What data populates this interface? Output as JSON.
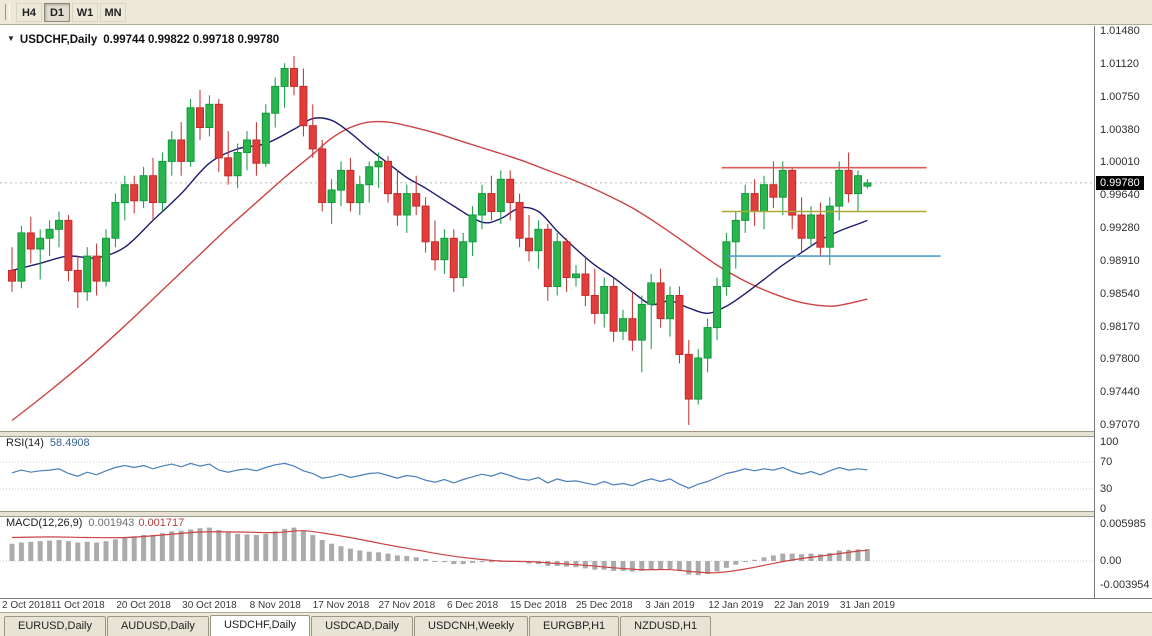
{
  "toolbar": {
    "timeframes": [
      {
        "label": "H4",
        "active": false
      },
      {
        "label": "D1",
        "active": true
      },
      {
        "label": "W1",
        "active": false
      },
      {
        "label": "MN",
        "active": false
      }
    ]
  },
  "chart": {
    "title": {
      "symbol_period": "USDCHF,Daily",
      "ohlc": "0.99744 0.99822 0.99718 0.99780"
    },
    "price_axis": {
      "labels": [
        "1.01480",
        "1.01120",
        "1.00750",
        "1.00380",
        "1.00010",
        "0.99640",
        "0.99280",
        "0.98910",
        "0.98540",
        "0.98170",
        "0.97800",
        "0.97440",
        "0.97070"
      ],
      "current": "0.99780"
    }
  },
  "chart_data": {
    "type": "candlestick",
    "symbol": "USDCHF",
    "period": "Daily",
    "ohlc_current": {
      "open": 0.99744,
      "high": 0.99822,
      "low": 0.99718,
      "close": 0.9978
    },
    "ylim": [
      0.9707,
      1.0148
    ],
    "current_price": 0.9978,
    "colors": {
      "up": "#2ab44e",
      "up_border": "#0f9a3c",
      "down": "#e23d3d",
      "down_border": "#c32b2b",
      "ma_fast": "#1c1c6e",
      "ma_slow": "#cc4343",
      "rsi": "#4a7ebb",
      "macd_hist": "#ababab",
      "macd_signal": "#cc4343",
      "bid_line": "#bbbbbb"
    },
    "candles": [
      [
        0.988,
        0.9906,
        0.9856,
        0.9868
      ],
      [
        0.9868,
        0.993,
        0.986,
        0.9922
      ],
      [
        0.9922,
        0.994,
        0.9888,
        0.9904
      ],
      [
        0.9904,
        0.9926,
        0.987,
        0.9916
      ],
      [
        0.9916,
        0.9936,
        0.9896,
        0.9926
      ],
      [
        0.9926,
        0.9946,
        0.9906,
        0.9936
      ],
      [
        0.9936,
        0.9942,
        0.9868,
        0.988
      ],
      [
        0.988,
        0.9896,
        0.9838,
        0.9856
      ],
      [
        0.9856,
        0.9906,
        0.9846,
        0.9896
      ],
      [
        0.9896,
        0.991,
        0.9852,
        0.9868
      ],
      [
        0.9868,
        0.9926,
        0.9862,
        0.9916
      ],
      [
        0.9916,
        0.9966,
        0.9906,
        0.9956
      ],
      [
        0.9956,
        0.9986,
        0.9936,
        0.9976
      ],
      [
        0.9976,
        0.9986,
        0.9944,
        0.9958
      ],
      [
        0.9958,
        0.9996,
        0.995,
        0.9986
      ],
      [
        0.9986,
        1.0006,
        0.9936,
        0.9956
      ],
      [
        0.9956,
        1.0012,
        0.9946,
        1.0002
      ],
      [
        1.0002,
        1.0036,
        0.9986,
        1.0026
      ],
      [
        1.0026,
        1.0046,
        0.9986,
        1.0002
      ],
      [
        1.0002,
        1.0072,
        0.9996,
        1.0062
      ],
      [
        1.0062,
        1.0082,
        1.0026,
        1.004
      ],
      [
        1.004,
        1.0076,
        1.003,
        1.0066
      ],
      [
        1.0066,
        1.0072,
        0.999,
        1.0006
      ],
      [
        1.0006,
        1.0036,
        0.9976,
        0.9986
      ],
      [
        0.9986,
        1.0022,
        0.9972,
        1.0012
      ],
      [
        1.0012,
        1.0036,
        0.9992,
        1.0026
      ],
      [
        1.0026,
        1.0046,
        0.9986,
        1.0
      ],
      [
        1.0,
        1.0066,
        0.9996,
        1.0056
      ],
      [
        1.0056,
        1.0096,
        1.004,
        1.0086
      ],
      [
        1.0086,
        1.0112,
        1.0062,
        1.0106
      ],
      [
        1.0106,
        1.012,
        1.0076,
        1.0086
      ],
      [
        1.0086,
        1.0106,
        1.003,
        1.0042
      ],
      [
        1.0042,
        1.0066,
        1.0006,
        1.0016
      ],
      [
        1.0016,
        1.0026,
        0.9946,
        0.9956
      ],
      [
        0.9956,
        0.9982,
        0.9932,
        0.997
      ],
      [
        0.997,
        1.0002,
        0.9952,
        0.9992
      ],
      [
        0.9992,
        1.0006,
        0.9946,
        0.9956
      ],
      [
        0.9956,
        0.9986,
        0.9942,
        0.9976
      ],
      [
        0.9976,
        1.0002,
        0.9956,
        0.9996
      ],
      [
        0.9996,
        1.0012,
        0.9972,
        1.0002
      ],
      [
        1.0002,
        1.0008,
        0.9956,
        0.9966
      ],
      [
        0.9966,
        0.9992,
        0.993,
        0.9942
      ],
      [
        0.9942,
        0.9976,
        0.9922,
        0.9966
      ],
      [
        0.9966,
        0.9986,
        0.9942,
        0.9952
      ],
      [
        0.9952,
        0.9962,
        0.99,
        0.9912
      ],
      [
        0.9912,
        0.9936,
        0.988,
        0.9892
      ],
      [
        0.9892,
        0.9926,
        0.9876,
        0.9916
      ],
      [
        0.9916,
        0.9926,
        0.9856,
        0.9872
      ],
      [
        0.9872,
        0.9922,
        0.9862,
        0.9912
      ],
      [
        0.9912,
        0.9952,
        0.9896,
        0.9942
      ],
      [
        0.9942,
        0.9976,
        0.9926,
        0.9966
      ],
      [
        0.9966,
        0.9986,
        0.9936,
        0.9946
      ],
      [
        0.9946,
        0.9992,
        0.9932,
        0.9982
      ],
      [
        0.9982,
        0.9992,
        0.9936,
        0.9956
      ],
      [
        0.9956,
        0.9966,
        0.9906,
        0.9916
      ],
      [
        0.9916,
        0.9942,
        0.989,
        0.9902
      ],
      [
        0.9902,
        0.9936,
        0.9882,
        0.9926
      ],
      [
        0.9926,
        0.9932,
        0.9846,
        0.9862
      ],
      [
        0.9862,
        0.9922,
        0.9852,
        0.9912
      ],
      [
        0.9912,
        0.9916,
        0.9856,
        0.9872
      ],
      [
        0.9872,
        0.9886,
        0.9862,
        0.9876
      ],
      [
        0.9876,
        0.9896,
        0.984,
        0.9852
      ],
      [
        0.9852,
        0.9882,
        0.982,
        0.9832
      ],
      [
        0.9832,
        0.9872,
        0.9816,
        0.9862
      ],
      [
        0.9862,
        0.9872,
        0.98,
        0.9812
      ],
      [
        0.9812,
        0.9836,
        0.9802,
        0.9826
      ],
      [
        0.9826,
        0.9856,
        0.979,
        0.9802
      ],
      [
        0.9802,
        0.9852,
        0.9766,
        0.9842
      ],
      [
        0.9842,
        0.9876,
        0.9792,
        0.9866
      ],
      [
        0.9866,
        0.9882,
        0.9816,
        0.9826
      ],
      [
        0.9826,
        0.9862,
        0.9806,
        0.9852
      ],
      [
        0.9852,
        0.9862,
        0.9776,
        0.9786
      ],
      [
        0.9786,
        0.9802,
        0.9707,
        0.9736
      ],
      [
        0.9736,
        0.9792,
        0.973,
        0.9782
      ],
      [
        0.9782,
        0.9826,
        0.9766,
        0.9816
      ],
      [
        0.9816,
        0.9872,
        0.9802,
        0.9862
      ],
      [
        0.9862,
        0.9922,
        0.9852,
        0.9912
      ],
      [
        0.9912,
        0.9946,
        0.9882,
        0.9936
      ],
      [
        0.9936,
        0.9976,
        0.9922,
        0.9966
      ],
      [
        0.9966,
        0.9982,
        0.993,
        0.9946
      ],
      [
        0.9946,
        0.9986,
        0.9926,
        0.9976
      ],
      [
        0.9976,
        1.0002,
        0.995,
        0.9962
      ],
      [
        0.9962,
        1.0002,
        0.9942,
        0.9992
      ],
      [
        0.9992,
        0.9996,
        0.9926,
        0.9942
      ],
      [
        0.9942,
        0.9962,
        0.99,
        0.9916
      ],
      [
        0.9916,
        0.9952,
        0.9906,
        0.9942
      ],
      [
        0.9942,
        0.9956,
        0.9896,
        0.9906
      ],
      [
        0.9906,
        0.9962,
        0.9886,
        0.9952
      ],
      [
        0.9952,
        1.0002,
        0.9936,
        0.9992
      ],
      [
        0.9992,
        1.0012,
        0.9956,
        0.9966
      ],
      [
        0.9966,
        0.9992,
        0.9946,
        0.9986
      ],
      [
        0.99744,
        0.99822,
        0.99718,
        0.9978
      ]
    ],
    "time_labels": [
      {
        "index": 0,
        "text": "2 Oct 2018"
      },
      {
        "index": 7,
        "text": "11 Oct 2018"
      },
      {
        "index": 14,
        "text": "20 Oct 2018"
      },
      {
        "index": 21,
        "text": "30 Oct 2018"
      },
      {
        "index": 28,
        "text": "8 Nov 2018"
      },
      {
        "index": 35,
        "text": "17 Nov 2018"
      },
      {
        "index": 42,
        "text": "27 Nov 2018"
      },
      {
        "index": 49,
        "text": "6 Dec 2018"
      },
      {
        "index": 56,
        "text": "15 Dec 2018"
      },
      {
        "index": 63,
        "text": "25 Dec 2018"
      },
      {
        "index": 70,
        "text": "3 Jan 2019"
      },
      {
        "index": 77,
        "text": "12 Jan 2019"
      },
      {
        "index": 84,
        "text": "22 Jan 2019"
      },
      {
        "index": 91,
        "text": "31 Jan 2019"
      }
    ],
    "ma_fast_points": [
      [
        0,
        0.988
      ],
      [
        3,
        0.9888
      ],
      [
        6,
        0.9896
      ],
      [
        9,
        0.9894
      ],
      [
        12,
        0.9906
      ],
      [
        15,
        0.9936
      ],
      [
        18,
        0.9966
      ],
      [
        21,
        1.0
      ],
      [
        24,
        1.0016
      ],
      [
        27,
        1.0022
      ],
      [
        30,
        1.0038
      ],
      [
        32,
        1.005
      ],
      [
        34,
        1.0048
      ],
      [
        36,
        1.0034
      ],
      [
        38,
        1.0016
      ],
      [
        40,
        1.0
      ],
      [
        42,
        0.9984
      ],
      [
        44,
        0.9972
      ],
      [
        47,
        0.9952
      ],
      [
        50,
        0.9934
      ],
      [
        52,
        0.9938
      ],
      [
        54,
        0.995
      ],
      [
        56,
        0.9946
      ],
      [
        58,
        0.9924
      ],
      [
        60,
        0.9904
      ],
      [
        62,
        0.9886
      ],
      [
        64,
        0.9872
      ],
      [
        66,
        0.9856
      ],
      [
        68,
        0.9842
      ],
      [
        70,
        0.9846
      ],
      [
        72,
        0.9838
      ],
      [
        74,
        0.9832
      ],
      [
        76,
        0.984
      ],
      [
        78,
        0.9854
      ],
      [
        80,
        0.987
      ],
      [
        82,
        0.9886
      ],
      [
        84,
        0.99
      ],
      [
        86,
        0.9914
      ],
      [
        88,
        0.9924
      ],
      [
        90,
        0.9932
      ],
      [
        91,
        0.9936
      ]
    ],
    "ma_slow_points": [
      [
        0,
        0.9712
      ],
      [
        4,
        0.9745
      ],
      [
        8,
        0.978
      ],
      [
        12,
        0.9818
      ],
      [
        16,
        0.9858
      ],
      [
        20,
        0.9898
      ],
      [
        23,
        0.9928
      ],
      [
        26,
        0.9956
      ],
      [
        29,
        0.9984
      ],
      [
        32,
        1.001
      ],
      [
        34,
        1.0028
      ],
      [
        36,
        1.004
      ],
      [
        38,
        1.0046
      ],
      [
        40,
        1.0046
      ],
      [
        42,
        1.0042
      ],
      [
        45,
        1.0034
      ],
      [
        48,
        1.0024
      ],
      [
        51,
        1.0014
      ],
      [
        54,
        1.0004
      ],
      [
        57,
        0.9992
      ],
      [
        60,
        0.998
      ],
      [
        63,
        0.9966
      ],
      [
        66,
        0.995
      ],
      [
        69,
        0.993
      ],
      [
        72,
        0.9908
      ],
      [
        75,
        0.9886
      ],
      [
        78,
        0.9868
      ],
      [
        81,
        0.9854
      ],
      [
        84,
        0.9844
      ],
      [
        87,
        0.984
      ],
      [
        89,
        0.9843
      ],
      [
        91,
        0.9848
      ]
    ],
    "hlines": [
      {
        "name": "resistance-line",
        "price": 0.9995,
        "from": 75.5,
        "to": 97.3,
        "color": "#dd5c5c"
      },
      {
        "name": "mid-line",
        "price": 0.9946,
        "from": 75.5,
        "to": 97.3,
        "color": "#a9a83c"
      },
      {
        "name": "support-line",
        "price": 0.9896,
        "from": 76.0,
        "to": 98.8,
        "color": "#4e9dc8"
      }
    ],
    "rsi": {
      "label": "RSI(14)",
      "value": "58.4908",
      "levels": [
        100,
        70,
        30,
        0
      ],
      "series": [
        54,
        58,
        55,
        57,
        58,
        60,
        53,
        49,
        55,
        51,
        57,
        62,
        65,
        62,
        65,
        60,
        64,
        67,
        63,
        68,
        64,
        67,
        58,
        55,
        58,
        60,
        57,
        62,
        66,
        68,
        64,
        57,
        53,
        46,
        48,
        52,
        47,
        50,
        53,
        54,
        50,
        46,
        50,
        48,
        43,
        40,
        44,
        39,
        44,
        48,
        52,
        49,
        54,
        50,
        45,
        43,
        47,
        39,
        45,
        41,
        42,
        39,
        36,
        41,
        36,
        38,
        35,
        41,
        45,
        41,
        45,
        37,
        31,
        37,
        41,
        47,
        53,
        56,
        60,
        57,
        60,
        58,
        62,
        56,
        52,
        56,
        51,
        57,
        62,
        58,
        60,
        58.49
      ]
    },
    "macd": {
      "label": "MACD(12,26,9)",
      "value_main": "0.001943",
      "value_signal": "0.001717",
      "axis_labels": [
        "0.005985",
        "0.00",
        "-0.003954"
      ],
      "ylim": [
        -0.003954,
        0.005985
      ],
      "histogram": [
        0.0028,
        0.003,
        0.0031,
        0.0032,
        0.0033,
        0.0034,
        0.0032,
        0.003,
        0.0031,
        0.003,
        0.0032,
        0.0035,
        0.0038,
        0.004,
        0.0042,
        0.0042,
        0.0045,
        0.0048,
        0.0049,
        0.0051,
        0.0053,
        0.0054,
        0.005,
        0.0046,
        0.0044,
        0.0043,
        0.0042,
        0.0044,
        0.0048,
        0.0052,
        0.0054,
        0.0049,
        0.0042,
        0.0034,
        0.0028,
        0.0024,
        0.002,
        0.0017,
        0.0015,
        0.0014,
        0.0012,
        0.0009,
        0.0008,
        0.0006,
        0.0003,
        0.0,
        -0.0002,
        -0.0005,
        -0.0005,
        -0.0003,
        -0.0002,
        -0.0002,
        0.0,
        0.0,
        -0.0002,
        -0.0004,
        -0.0005,
        -0.0008,
        -0.0008,
        -0.0009,
        -0.001,
        -0.0012,
        -0.0014,
        -0.0014,
        -0.0016,
        -0.0016,
        -0.0017,
        -0.0016,
        -0.0014,
        -0.0014,
        -0.0013,
        -0.0016,
        -0.0022,
        -0.0023,
        -0.0021,
        -0.0017,
        -0.0011,
        -0.0006,
        -0.0001,
        0.0002,
        0.0006,
        0.0009,
        0.0012,
        0.0012,
        0.0011,
        0.0012,
        0.0011,
        0.0013,
        0.0017,
        0.0018,
        0.0019,
        0.001943
      ],
      "signal_points": [
        [
          0,
          0.0038
        ],
        [
          4,
          0.0039
        ],
        [
          8,
          0.0038
        ],
        [
          12,
          0.0038
        ],
        [
          16,
          0.0042
        ],
        [
          20,
          0.0047
        ],
        [
          24,
          0.0047
        ],
        [
          28,
          0.0046
        ],
        [
          31,
          0.0049
        ],
        [
          34,
          0.0043
        ],
        [
          37,
          0.0035
        ],
        [
          40,
          0.0026
        ],
        [
          43,
          0.0018
        ],
        [
          46,
          0.001
        ],
        [
          49,
          0.0004
        ],
        [
          52,
          0.0
        ],
        [
          55,
          -0.0001
        ],
        [
          58,
          -0.0004
        ],
        [
          61,
          -0.0007
        ],
        [
          64,
          -0.0011
        ],
        [
          67,
          -0.0014
        ],
        [
          70,
          -0.0014
        ],
        [
          73,
          -0.0018
        ],
        [
          75,
          -0.0019
        ],
        [
          78,
          -0.0013
        ],
        [
          80,
          -0.0007
        ],
        [
          82,
          -0.0001
        ],
        [
          84,
          0.0004
        ],
        [
          86,
          0.0008
        ],
        [
          88,
          0.0012
        ],
        [
          90,
          0.0016
        ],
        [
          91,
          0.001717
        ]
      ]
    }
  },
  "tabs": [
    {
      "label": "EURUSD,Daily",
      "active": false
    },
    {
      "label": "AUDUSD,Daily",
      "active": false
    },
    {
      "label": "USDCHF,Daily",
      "active": true
    },
    {
      "label": "USDCAD,Daily",
      "active": false
    },
    {
      "label": "USDCNH,Weekly",
      "active": false
    },
    {
      "label": "EURGBP,H1",
      "active": false
    },
    {
      "label": "NZDUSD,H1",
      "active": false
    }
  ]
}
